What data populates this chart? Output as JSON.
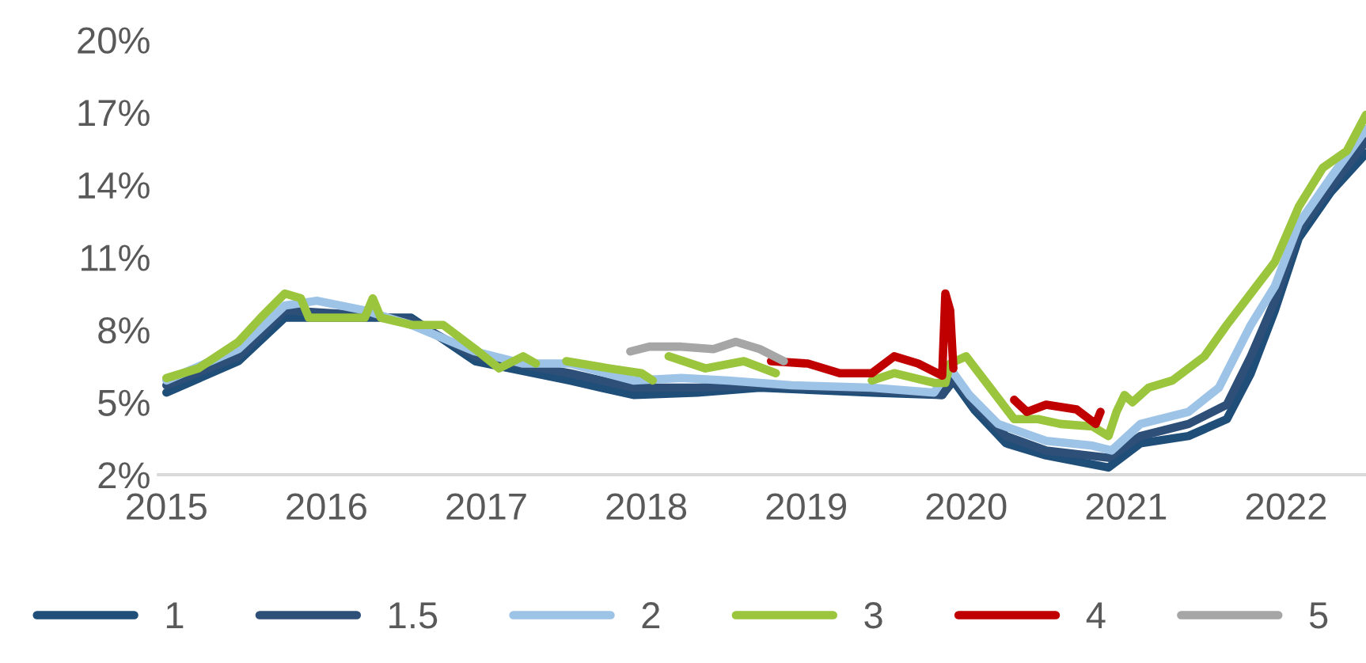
{
  "chart_data": {
    "type": "line",
    "xlim": [
      2014.95,
      2022.5
    ],
    "ylim": [
      2,
      20
    ],
    "xticks": [
      2015,
      2016,
      2017,
      2018,
      2019,
      2020,
      2021,
      2022
    ],
    "yticks": [
      {
        "value": 2,
        "label": "2%"
      },
      {
        "value": 5,
        "label": "5%"
      },
      {
        "value": 8,
        "label": "8%"
      },
      {
        "value": 11,
        "label": "11%"
      },
      {
        "value": 14,
        "label": "14%"
      },
      {
        "value": 17,
        "label": "17%"
      },
      {
        "value": 20,
        "label": "20%"
      }
    ],
    "grid": false,
    "legend": "bottom",
    "marker": "none",
    "line_style": "solid",
    "series": [
      {
        "name": "1",
        "color": "#1f4e79",
        "x": [
          2015.0,
          2015.45,
          2015.74,
          2016.24,
          2016.53,
          2016.93,
          2017.52,
          2017.92,
          2018.32,
          2018.71,
          2019.41,
          2019.85,
          2019.92,
          2020.05,
          2020.25,
          2020.5,
          2020.89,
          2021.09,
          2021.39,
          2021.63,
          2021.78,
          2021.93,
          2022.08,
          2022.28,
          2022.5
        ],
        "values": [
          5.4,
          6.7,
          8.5,
          8.5,
          8.5,
          6.7,
          5.9,
          5.3,
          5.4,
          5.6,
          5.4,
          5.3,
          5.9,
          4.7,
          3.3,
          2.8,
          2.3,
          3.3,
          3.6,
          4.3,
          6.2,
          8.8,
          11.8,
          13.7,
          15.3
        ]
      },
      {
        "name": "1.5",
        "color": "#2e5078",
        "x": [
          2015.0,
          2015.45,
          2015.74,
          2016.24,
          2016.53,
          2016.93,
          2017.52,
          2017.92,
          2018.32,
          2018.71,
          2019.41,
          2019.85,
          2019.92,
          2020.05,
          2020.25,
          2020.5,
          2020.89,
          2021.09,
          2021.39,
          2021.63,
          2021.78,
          2021.93,
          2022.08,
          2022.28,
          2022.5
        ],
        "values": [
          5.7,
          6.9,
          8.8,
          8.6,
          8.4,
          6.9,
          6.2,
          5.6,
          5.6,
          5.7,
          5.5,
          5.3,
          6.0,
          4.9,
          3.6,
          3.0,
          2.7,
          3.6,
          4.1,
          4.9,
          6.9,
          9.2,
          12.1,
          13.9,
          15.8
        ]
      },
      {
        "name": "2",
        "color": "#9dc3e6",
        "x": [
          2015.0,
          2015.45,
          2015.74,
          2015.94,
          2016.24,
          2016.53,
          2016.93,
          2017.23,
          2017.52,
          2017.92,
          2018.22,
          2018.51,
          2018.91,
          2019.41,
          2019.8,
          2019.9,
          2020.02,
          2020.2,
          2020.5,
          2020.79,
          2020.91,
          2021.09,
          2021.39,
          2021.58,
          2021.78,
          2021.93,
          2022.08,
          2022.28,
          2022.5
        ],
        "values": [
          5.9,
          7.2,
          9.0,
          9.2,
          8.8,
          8.2,
          7.1,
          6.6,
          6.6,
          5.9,
          6.0,
          5.9,
          5.7,
          5.6,
          5.4,
          6.4,
          5.3,
          4.1,
          3.4,
          3.2,
          3.0,
          4.1,
          4.6,
          5.6,
          8.2,
          9.8,
          12.4,
          14.3,
          16.3
        ]
      },
      {
        "name": "3",
        "color": "#9bc53d",
        "x": [
          2015.0,
          2015.2,
          2015.45,
          2015.59,
          2015.74,
          2015.84,
          2015.89,
          2016.24,
          2016.29,
          2016.34,
          2016.53,
          2016.73,
          2016.93,
          2017.08,
          2017.23,
          2017.31,
          2017.41,
          2017.5,
          2017.77,
          2017.97,
          2018.04,
          2018.09,
          2018.14,
          2018.37,
          2018.61,
          2018.81,
          2019.11,
          2019.41,
          2019.55,
          2019.8,
          2019.87,
          2019.9,
          2020.0,
          2020.15,
          2020.3,
          2020.45,
          2020.59,
          2020.79,
          2020.89,
          2020.94,
          2020.99,
          2021.04,
          2021.14,
          2021.29,
          2021.49,
          2021.63,
          2021.78,
          2021.93,
          2022.08,
          2022.23,
          2022.38,
          2022.5
        ],
        "values": [
          6.0,
          6.4,
          7.5,
          8.5,
          9.5,
          9.3,
          8.5,
          8.5,
          9.3,
          8.5,
          8.2,
          8.2,
          7.2,
          6.4,
          6.9,
          6.6,
          null,
          6.7,
          6.4,
          6.2,
          5.9,
          null,
          6.9,
          6.4,
          6.7,
          6.2,
          null,
          5.9,
          6.2,
          5.8,
          5.8,
          6.6,
          6.9,
          5.6,
          4.3,
          4.3,
          4.1,
          4.0,
          3.6,
          4.6,
          5.3,
          5.0,
          5.6,
          5.9,
          6.9,
          8.2,
          9.5,
          10.8,
          13.1,
          14.7,
          15.4,
          16.9
        ]
      },
      {
        "name": "4",
        "color": "#c00000",
        "x": [
          2018.78,
          2019.01,
          2019.21,
          2019.41,
          2019.55,
          2019.7,
          2019.85,
          2019.87,
          2019.9,
          2019.92,
          2020.1,
          2020.3,
          2020.38,
          2020.5,
          2020.69,
          2020.81,
          2020.84
        ],
        "values": [
          6.7,
          6.6,
          6.2,
          6.2,
          6.9,
          6.6,
          6.1,
          9.5,
          8.8,
          6.4,
          null,
          5.1,
          4.6,
          4.9,
          4.7,
          4.1,
          4.6
        ]
      },
      {
        "name": "5",
        "color": "#a6a6a6",
        "x": [
          2017.9,
          2018.02,
          2018.22,
          2018.42,
          2018.56,
          2018.71,
          2018.86
        ],
        "values": [
          7.1,
          7.3,
          7.3,
          7.2,
          7.5,
          7.2,
          6.7
        ]
      }
    ]
  }
}
